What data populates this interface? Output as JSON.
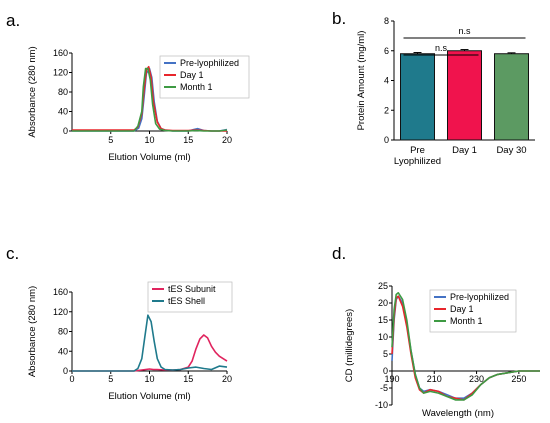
{
  "panels": {
    "a": {
      "label": "a.",
      "chart_data": {
        "type": "line",
        "xlabel": "Elution Volume (ml)",
        "ylabel": "Absorbance (280 nm)",
        "xlim": [
          0,
          20
        ],
        "ylim": [
          0,
          160
        ],
        "xticks": [
          5,
          10,
          15,
          20
        ],
        "yticks": [
          0,
          40,
          80,
          120,
          160
        ],
        "legend_position": "top-right",
        "series": [
          {
            "name": "Pre-lyophilized",
            "color": "#4472C4",
            "x": [
              0,
              6,
              7,
              8,
              8.6,
              9,
              9.3,
              9.6,
              10,
              10.3,
              10.6,
              11,
              11.5,
              12,
              13,
              15,
              15.7,
              16.2,
              17,
              18,
              19,
              20
            ],
            "y": [
              0,
              0,
              0,
              0,
              6,
              25,
              70,
              118,
              128,
              110,
              60,
              20,
              5,
              2,
              0,
              0,
              3,
              5,
              1,
              0,
              0,
              3
            ]
          },
          {
            "name": "Day 1",
            "color": "#E8262C",
            "x": [
              0,
              6,
              7,
              8,
              8.5,
              9,
              9.3,
              9.6,
              9.9,
              10.2,
              10.5,
              11,
              11.5,
              12,
              13,
              15,
              16,
              17,
              18,
              19,
              20
            ],
            "y": [
              2,
              2,
              2,
              2,
              8,
              35,
              85,
              125,
              132,
              110,
              60,
              18,
              5,
              2,
              1,
              1,
              2,
              1,
              0,
              0,
              0
            ]
          },
          {
            "name": "Month 1",
            "color": "#3E9A43",
            "x": [
              0,
              6,
              7,
              8,
              8.5,
              9,
              9.2,
              9.5,
              9.8,
              10.1,
              10.4,
              10.8,
              11.3,
              12,
              13,
              15,
              16,
              17,
              18,
              19,
              20
            ],
            "y": [
              0,
              0,
              0,
              0,
              10,
              40,
              90,
              128,
              128,
              105,
              55,
              15,
              4,
              1,
              0,
              0,
              1,
              0,
              0,
              0,
              2
            ]
          }
        ]
      }
    },
    "b": {
      "label": "b.",
      "chart_data": {
        "type": "bar",
        "ylabel": "Protein Amount (mg/ml)",
        "categories": [
          "Pre\nLyophilized",
          "Day 1",
          "Day 30"
        ],
        "values": [
          5.8,
          6.0,
          5.8
        ],
        "errors": [
          0.08,
          0.08,
          0.06
        ],
        "colors": [
          "#1F7A8C",
          "#F0134D",
          "#5C9A62"
        ],
        "ylim": [
          0,
          8
        ],
        "yticks": [
          0,
          2,
          4,
          6,
          8
        ],
        "annotations": [
          {
            "text": "n.s",
            "from": 0,
            "to": 2
          },
          {
            "text": "n.s",
            "from": 0,
            "to": 1
          }
        ]
      }
    },
    "c": {
      "label": "c.",
      "chart_data": {
        "type": "line",
        "xlabel": "Elution Volume (ml)",
        "ylabel": "Absorbance (280 nm)",
        "xlim": [
          0,
          20
        ],
        "ylim": [
          0,
          160
        ],
        "xticks": [
          0,
          5,
          10,
          15,
          20
        ],
        "yticks": [
          0,
          40,
          80,
          120,
          160
        ],
        "legend_position": "top-right",
        "series": [
          {
            "name": "tES Subunit",
            "color": "#E0245E",
            "x": [
              0,
              5,
              8,
              9,
              9.5,
              10,
              10.5,
              11,
              12,
              13,
              14,
              15,
              15.5,
              16,
              16.5,
              17,
              17.5,
              18,
              18.5,
              19,
              20
            ],
            "y": [
              0,
              0,
              0,
              2,
              3,
              4,
              3,
              3,
              2,
              2,
              3,
              8,
              20,
              45,
              65,
              73,
              67,
              50,
              38,
              30,
              20
            ]
          },
          {
            "name": "tES Shell",
            "color": "#1F7A8C",
            "x": [
              0,
              5,
              8,
              8.5,
              9,
              9.4,
              9.8,
              10.2,
              10.6,
              11,
              11.5,
              12,
              13,
              14,
              15,
              16,
              17,
              18,
              19,
              20
            ],
            "y": [
              0,
              0,
              0,
              5,
              25,
              70,
              113,
              100,
              60,
              25,
              8,
              3,
              2,
              3,
              6,
              8,
              5,
              3,
              10,
              8
            ]
          }
        ]
      }
    },
    "d": {
      "label": "d.",
      "chart_data": {
        "type": "line",
        "xlabel": "Wavelength (nm)",
        "ylabel": "CD (millidegrees)",
        "xlim": [
          190,
          260
        ],
        "ylim": [
          -10,
          25
        ],
        "xticks": [
          190,
          210,
          230,
          250
        ],
        "yticks": [
          -10,
          -5,
          0,
          5,
          10,
          15,
          20,
          25
        ],
        "legend_position": "top-right",
        "series": [
          {
            "name": "Pre-lyophilized",
            "color": "#4472C4",
            "x": [
              190,
              191,
              192,
              193,
              195,
              197,
              199,
              201,
              203,
              205,
              208,
              212,
              216,
              220,
              224,
              228,
              232,
              236,
              240,
              245,
              250,
              255,
              260
            ],
            "y": [
              3,
              15,
              21,
              22,
              20,
              14,
              6,
              -1,
              -5,
              -6,
              -5.5,
              -6,
              -7,
              -8,
              -8,
              -6.5,
              -4,
              -2,
              -1,
              -0.5,
              0,
              0,
              0
            ]
          },
          {
            "name": "Day 1",
            "color": "#E8262C",
            "x": [
              190,
              191,
              192,
              193,
              195,
              197,
              199,
              201,
              203,
              205,
              208,
              212,
              216,
              220,
              224,
              228,
              232,
              236,
              240,
              245,
              250,
              255,
              260
            ],
            "y": [
              5,
              16,
              21.5,
              22,
              19,
              13,
              5,
              -2,
              -5.5,
              -6.5,
              -5.5,
              -6,
              -7.5,
              -8,
              -8.5,
              -6.5,
              -4,
              -2,
              -1,
              -0.5,
              0,
              0,
              0
            ]
          },
          {
            "name": "Month 1",
            "color": "#3E9A43",
            "x": [
              190,
              191,
              192,
              193,
              195,
              197,
              199,
              201,
              203,
              205,
              208,
              212,
              216,
              220,
              224,
              228,
              232,
              236,
              240,
              245,
              250,
              255,
              260
            ],
            "y": [
              7,
              18,
              22.5,
              23,
              21,
              15,
              6,
              -1,
              -5,
              -6.5,
              -6,
              -6.5,
              -7.5,
              -8.5,
              -8.5,
              -7,
              -4,
              -2,
              -1,
              -0.5,
              0,
              0,
              0
            ]
          }
        ]
      }
    }
  }
}
